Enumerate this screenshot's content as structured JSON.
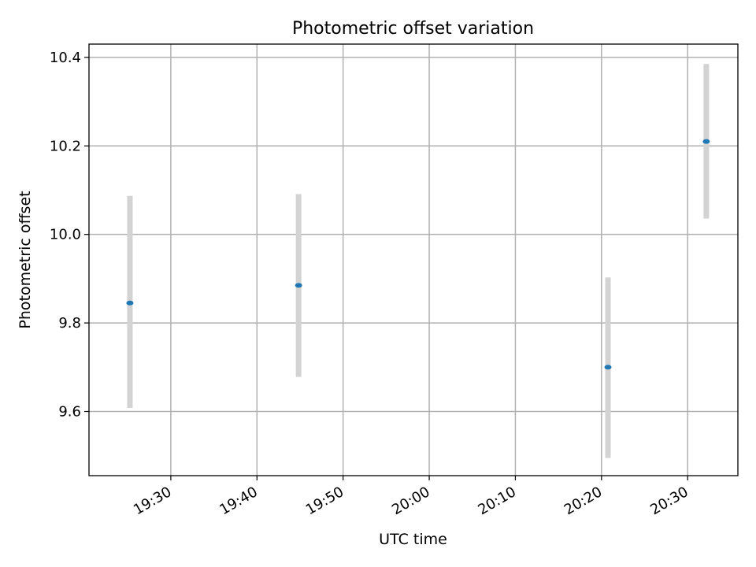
{
  "chart_data": {
    "type": "scatter",
    "title": "Photometric offset variation",
    "xlabel": "UTC time",
    "ylabel": "Photometric offset",
    "x_ticks": [
      "19:30",
      "19:40",
      "19:50",
      "20:00",
      "20:10",
      "20:20",
      "20:30"
    ],
    "y_ticks": [
      "9.6",
      "9.8",
      "10.0",
      "10.2",
      "10.4"
    ],
    "xlim": [
      "19:20:30",
      "20:35:50"
    ],
    "ylim": [
      9.455,
      10.43
    ],
    "grid": true,
    "legend": "none",
    "series": [
      {
        "points": [
          {
            "x": "19:25:15",
            "y": 9.845,
            "err_low": 9.608,
            "err_high": 10.087
          },
          {
            "x": "19:44:50",
            "y": 9.885,
            "err_low": 9.678,
            "err_high": 10.091
          },
          {
            "x": "20:20:45",
            "y": 9.7,
            "err_low": 9.495,
            "err_high": 9.903
          },
          {
            "x": "20:32:10",
            "y": 10.21,
            "err_low": 10.036,
            "err_high": 10.385
          }
        ]
      }
    ],
    "colors": {
      "point": "#1f77b4",
      "errorbar": "#d3d3d3",
      "grid": "#b0b0b0",
      "axes": "#000000"
    }
  }
}
